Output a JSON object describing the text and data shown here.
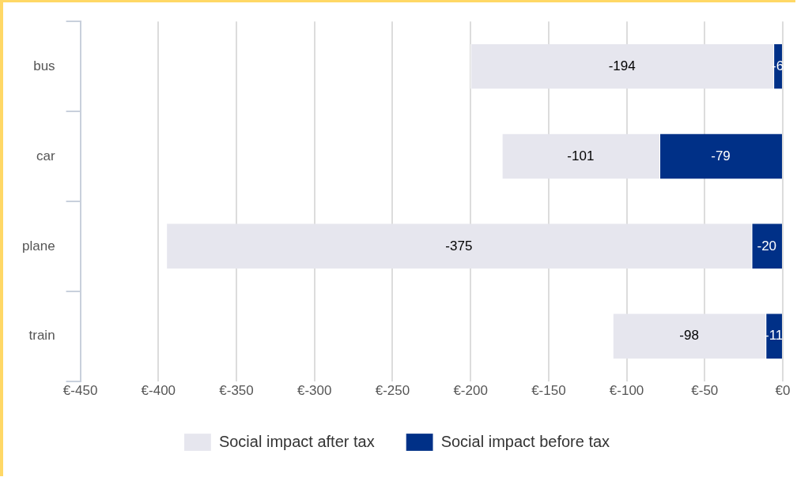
{
  "chart_data": {
    "type": "bar",
    "orientation": "horizontal",
    "stacked": true,
    "categories": [
      "bus",
      "car",
      "plane",
      "train"
    ],
    "series": [
      {
        "name": "Social impact before tax",
        "color": "#003087",
        "values": [
          -6,
          -79,
          -20,
          -11
        ]
      },
      {
        "name": "Social impact after tax",
        "color": "#e6e6ee",
        "values": [
          -194,
          -101,
          -375,
          -98
        ]
      }
    ],
    "xlim": [
      -450,
      0
    ],
    "xticks": [
      {
        "value": -450,
        "label": "€-450"
      },
      {
        "value": -400,
        "label": "€-400"
      },
      {
        "value": -350,
        "label": "€-350"
      },
      {
        "value": -300,
        "label": "€-300"
      },
      {
        "value": -250,
        "label": "€-250"
      },
      {
        "value": -200,
        "label": "€-200"
      },
      {
        "value": -150,
        "label": "€-150"
      },
      {
        "value": -100,
        "label": "€-100"
      },
      {
        "value": -50,
        "label": "€-50"
      },
      {
        "value": 0,
        "label": "€0"
      }
    ],
    "grid": "x",
    "legend": "bottom",
    "data_labels": true
  }
}
